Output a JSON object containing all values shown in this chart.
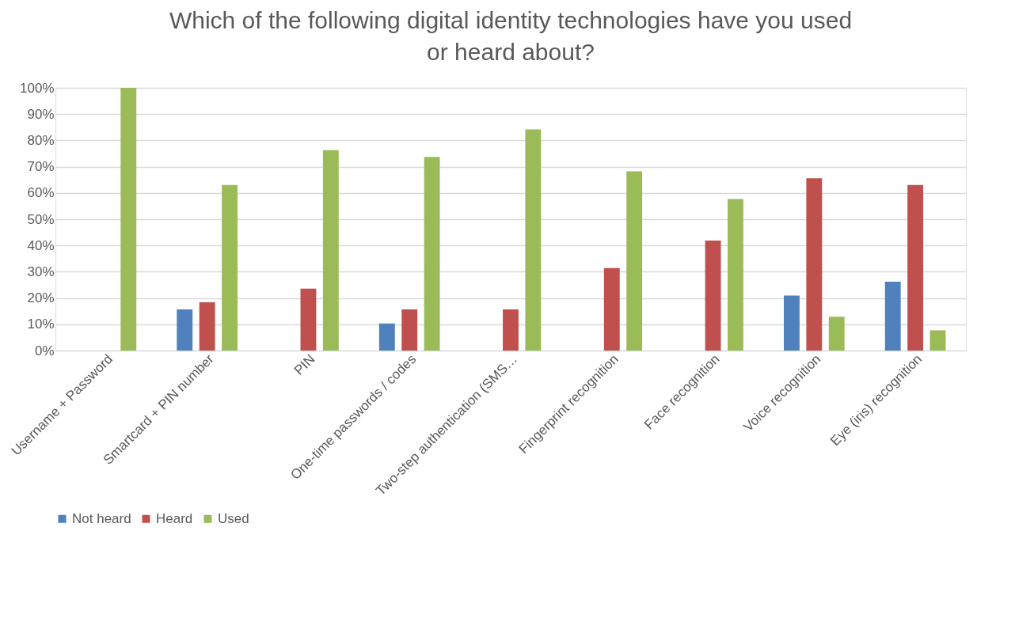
{
  "chart_data": {
    "type": "bar",
    "title": "Which of the following digital identity technologies have you used or heard about?",
    "categories": [
      "Username + Password",
      "Smartcard + PIN number",
      "PIN",
      "One-time passwords / codes",
      "Two-step authentication (SMS…",
      "Fingerprint recognition",
      "Face recognition",
      "Voice recognition",
      "Eye (iris) recognition"
    ],
    "series": [
      {
        "name": "Not heard",
        "color": "#4f81bd",
        "values": [
          0,
          15.7,
          0,
          10.3,
          0,
          0,
          0,
          20.9,
          26.2
        ]
      },
      {
        "name": "Heard",
        "color": "#c0504d",
        "values": [
          0,
          18.4,
          23.6,
          15.7,
          15.7,
          31.4,
          41.9,
          65.6,
          63.0
        ]
      },
      {
        "name": "Used",
        "color": "#9bbb59",
        "values": [
          100,
          63.0,
          76.3,
          73.7,
          84.2,
          68.2,
          57.7,
          12.9,
          7.7
        ]
      }
    ],
    "ylim": [
      0,
      100
    ],
    "yticks": [
      {
        "value": 0,
        "label": "0%"
      },
      {
        "value": 10,
        "label": "10%"
      },
      {
        "value": 20,
        "label": "20%"
      },
      {
        "value": 30,
        "label": "30%"
      },
      {
        "value": 40,
        "label": "40%"
      },
      {
        "value": 50,
        "label": "50%"
      },
      {
        "value": 60,
        "label": "60%"
      },
      {
        "value": 70,
        "label": "70%"
      },
      {
        "value": 80,
        "label": "80%"
      },
      {
        "value": 90,
        "label": "90%"
      },
      {
        "value": 100,
        "label": "100%"
      }
    ],
    "grid": "y",
    "legend": "bottom"
  }
}
